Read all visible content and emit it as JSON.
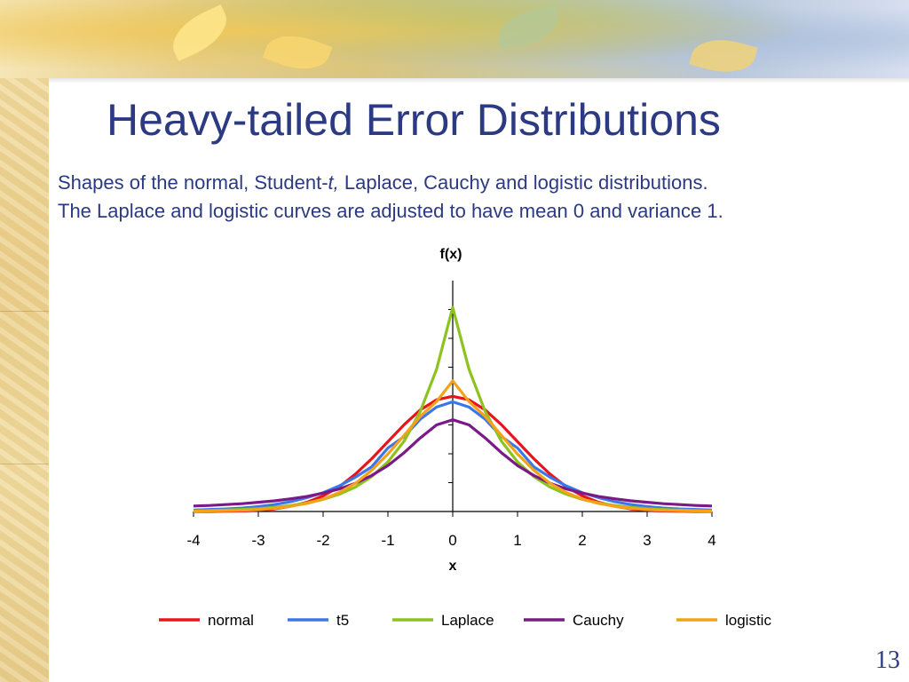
{
  "slide": {
    "title": "Heavy-tailed Error Distributions",
    "subtitle_line1_a": "Shapes of the normal, Student-",
    "subtitle_line1_t": "t,",
    "subtitle_line1_b": " Laplace, Cauchy and logistic distributions.",
    "subtitle_line2": "The Laplace and logistic curves are adjusted to have mean 0 and variance 1.",
    "page_number": "13"
  },
  "chart_data": {
    "type": "line",
    "title": "",
    "ylabel": "f(x)",
    "xlabel": "x",
    "xlim": [
      -4,
      4
    ],
    "ylim": [
      0,
      0.8
    ],
    "x_ticks": [
      "-4",
      "-3",
      "-2",
      "-1",
      "0",
      "1",
      "2",
      "3",
      "4"
    ],
    "y_tick_values": [
      0.1,
      0.2,
      0.3,
      0.4,
      0.5,
      0.6,
      0.7
    ],
    "legend_position": "bottom",
    "grid": false,
    "x": [
      -4,
      -3.75,
      -3.5,
      -3.25,
      -3,
      -2.75,
      -2.5,
      -2.25,
      -2,
      -1.75,
      -1.5,
      -1.25,
      -1,
      -0.75,
      -0.5,
      -0.25,
      0,
      0.25,
      0.5,
      0.75,
      1,
      1.25,
      1.5,
      1.75,
      2,
      2.25,
      2.5,
      2.75,
      3,
      3.25,
      3.5,
      3.75,
      4
    ],
    "series": [
      {
        "name": "normal",
        "color": "#e8141c",
        "values": [
          0.0,
          0.0,
          0.001,
          0.002,
          0.004,
          0.009,
          0.018,
          0.032,
          0.054,
          0.086,
          0.13,
          0.183,
          0.242,
          0.301,
          0.352,
          0.387,
          0.399,
          0.387,
          0.352,
          0.301,
          0.242,
          0.183,
          0.13,
          0.086,
          0.054,
          0.032,
          0.018,
          0.009,
          0.004,
          0.002,
          0.001,
          0.0,
          0.0
        ]
      },
      {
        "name": "t5",
        "color": "#3b78e7",
        "values": [
          0.005,
          0.007,
          0.009,
          0.012,
          0.017,
          0.024,
          0.034,
          0.048,
          0.065,
          0.089,
          0.119,
          0.155,
          0.22,
          0.26,
          0.32,
          0.362,
          0.38,
          0.362,
          0.32,
          0.26,
          0.22,
          0.155,
          0.119,
          0.089,
          0.065,
          0.048,
          0.034,
          0.024,
          0.017,
          0.012,
          0.009,
          0.007,
          0.005
        ]
      },
      {
        "name": "Laplace",
        "color": "#8dc21f",
        "values": [
          0.002,
          0.003,
          0.005,
          0.007,
          0.01,
          0.014,
          0.021,
          0.03,
          0.042,
          0.06,
          0.085,
          0.121,
          0.172,
          0.244,
          0.347,
          0.493,
          0.707,
          0.493,
          0.347,
          0.244,
          0.172,
          0.121,
          0.085,
          0.06,
          0.042,
          0.03,
          0.021,
          0.014,
          0.01,
          0.007,
          0.005,
          0.003,
          0.002
        ]
      },
      {
        "name": "Cauchy",
        "color": "#7a1a86",
        "values": [
          0.019,
          0.021,
          0.024,
          0.027,
          0.032,
          0.037,
          0.044,
          0.052,
          0.064,
          0.078,
          0.098,
          0.125,
          0.159,
          0.204,
          0.255,
          0.3,
          0.318,
          0.3,
          0.255,
          0.204,
          0.159,
          0.125,
          0.098,
          0.078,
          0.064,
          0.052,
          0.044,
          0.037,
          0.032,
          0.027,
          0.024,
          0.021,
          0.019
        ]
      },
      {
        "name": "logistic",
        "color": "#f5a21b",
        "values": [
          0.001,
          0.002,
          0.003,
          0.004,
          0.007,
          0.011,
          0.018,
          0.028,
          0.043,
          0.066,
          0.098,
          0.143,
          0.199,
          0.264,
          0.33,
          0.381,
          0.453,
          0.381,
          0.33,
          0.264,
          0.199,
          0.143,
          0.098,
          0.066,
          0.043,
          0.028,
          0.018,
          0.011,
          0.007,
          0.004,
          0.003,
          0.002,
          0.001
        ]
      }
    ]
  }
}
